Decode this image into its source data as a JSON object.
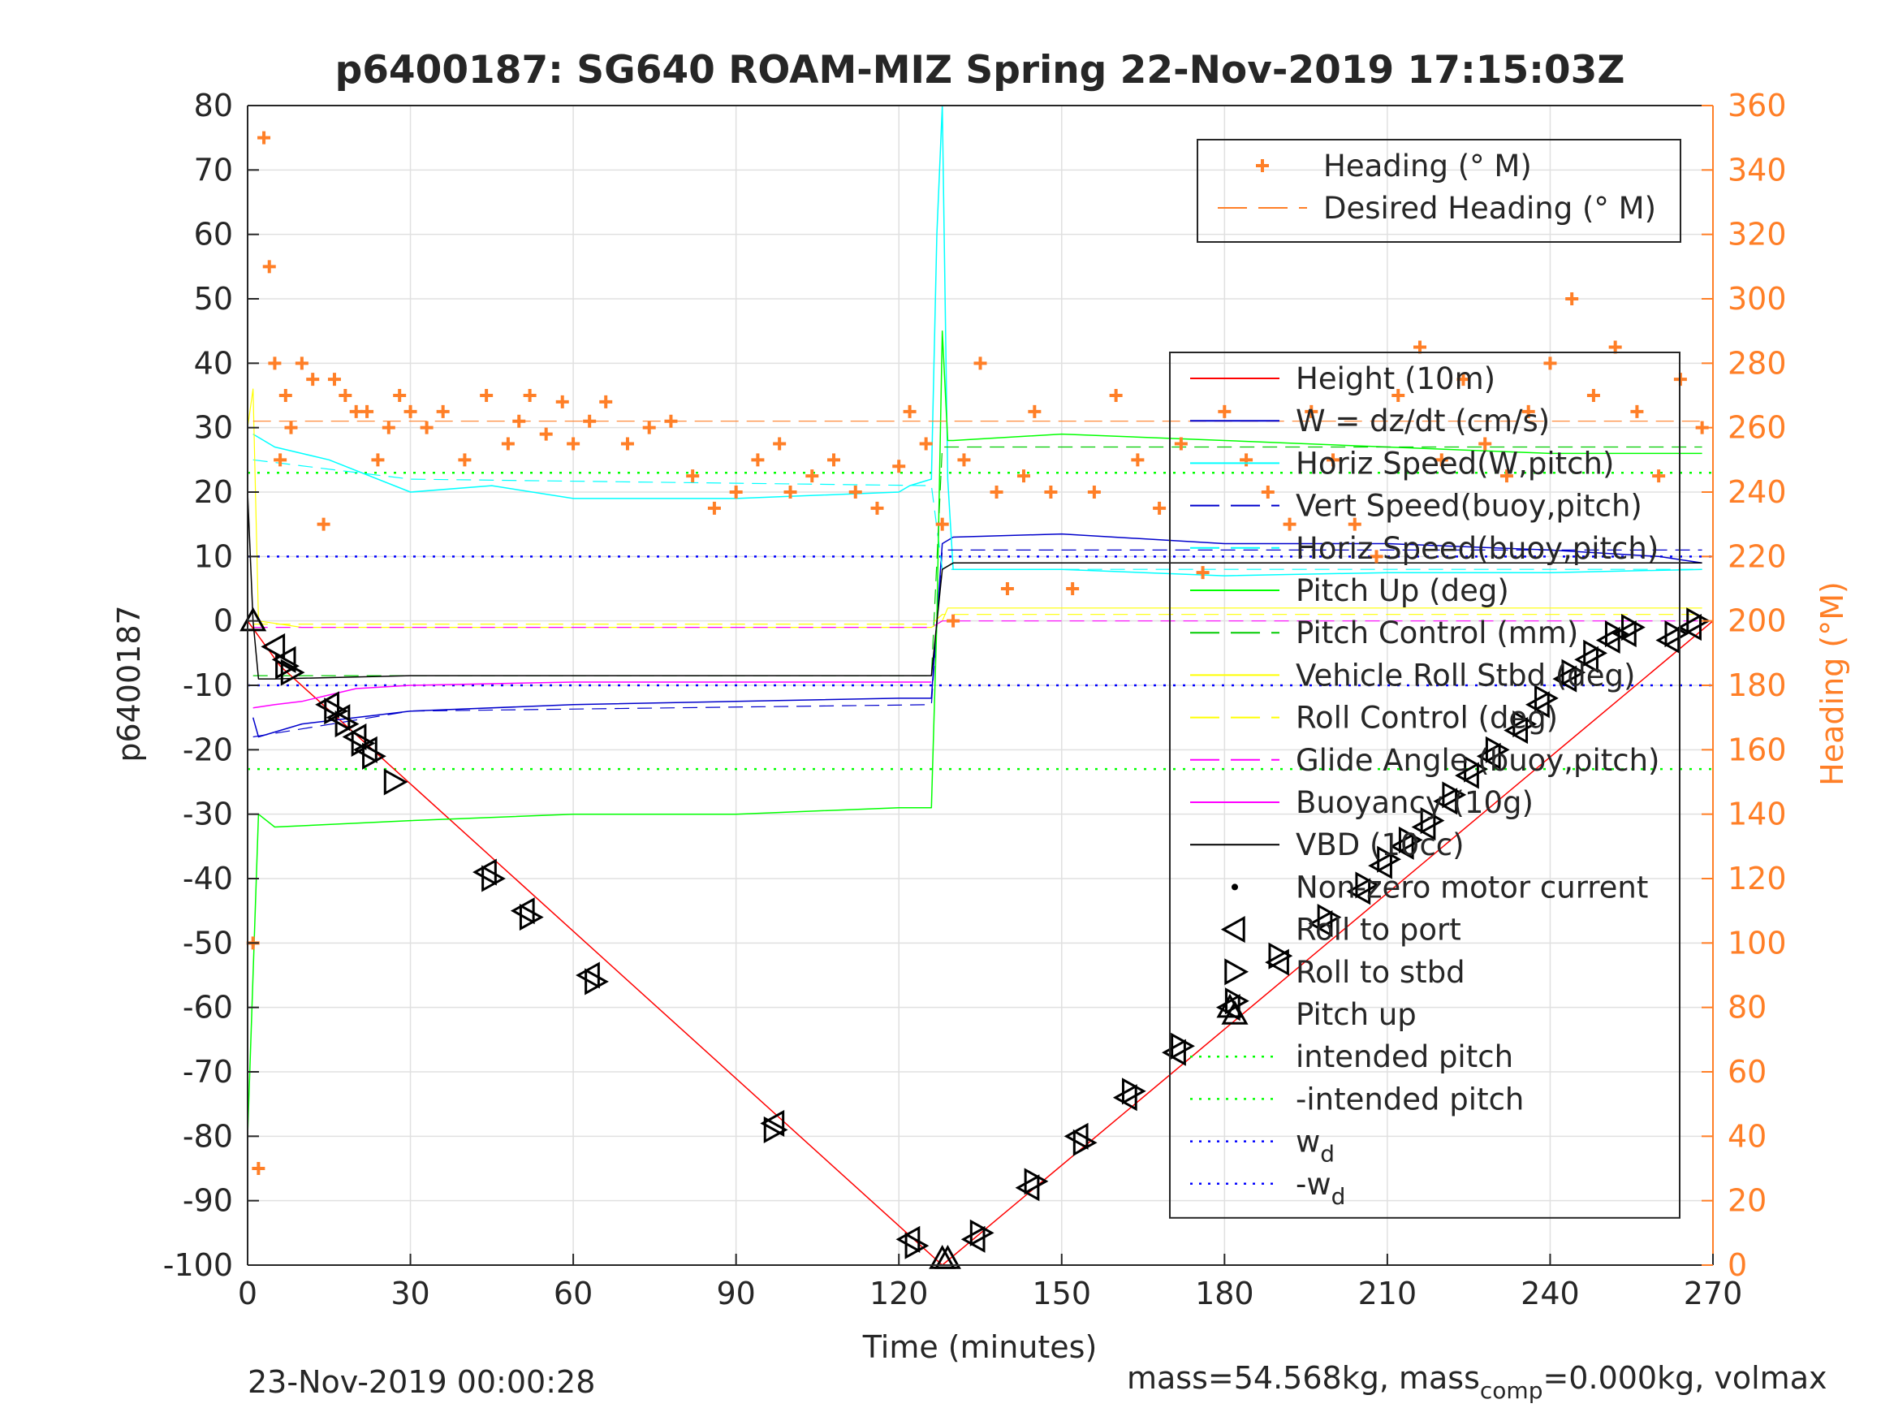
{
  "chart_data": {
    "type": "line",
    "title": "p6400187: SG640 ROAM-MIZ Spring 22-Nov-2019 17:15:03Z",
    "xlabel": "Time (minutes)",
    "ylabel": "p6400187",
    "y2label": "Heading (°M)",
    "xlim": [
      0,
      270
    ],
    "ylim": [
      -100,
      80
    ],
    "y2lim": [
      0,
      360
    ],
    "xticks": [
      0,
      30,
      60,
      90,
      120,
      150,
      180,
      210,
      240,
      270
    ],
    "yticks": [
      -100,
      -90,
      -80,
      -70,
      -60,
      -50,
      -40,
      -30,
      -20,
      -10,
      0,
      10,
      20,
      30,
      40,
      50,
      60,
      70,
      80
    ],
    "y2ticks": [
      0,
      20,
      40,
      60,
      80,
      100,
      120,
      140,
      160,
      180,
      200,
      220,
      240,
      260,
      280,
      300,
      320,
      340,
      360
    ],
    "grid": true,
    "footer_left": "23-Nov-2019 00:00:28",
    "footer_right": "mass=54.568kg, mass",
    "footer_right_sub": "comp",
    "footer_right_tail": "=0.000kg, volmax",
    "colors": {
      "axis": "#262626",
      "grid": "#e0e0e0",
      "heading": "#ff7f27",
      "red": "#ff0000",
      "blue": "#0000ff",
      "darkblue": "#0000cc",
      "cyan": "#00ffff",
      "green": "#00ff00",
      "yellow": "#ffff00",
      "magenta": "#ff00ff",
      "black": "#000000"
    },
    "legend_heading": [
      {
        "label": "Heading (° M)",
        "style": "plus",
        "color": "#ff7f27"
      },
      {
        "label": "Desired Heading (° M)",
        "style": "dash",
        "color": "#ff7f27"
      }
    ],
    "legend_main": [
      {
        "label": "Height (10m)",
        "style": "solid",
        "color": "#ff0000"
      },
      {
        "label": "W = dz/dt (cm/s)",
        "style": "solid",
        "color": "#0000cc"
      },
      {
        "label": "Horiz Speed(W,pitch)",
        "style": "solid",
        "color": "#00ffff"
      },
      {
        "label": "Vert Speed(buoy,pitch)",
        "style": "dash",
        "color": "#0000cc"
      },
      {
        "label": "Horiz Speed(buoy,pitch)",
        "style": "dash",
        "color": "#00ffff"
      },
      {
        "label": "Pitch Up (deg)",
        "style": "solid",
        "color": "#00ff00"
      },
      {
        "label": "Pitch Control (mm)",
        "style": "dash",
        "color": "#00cc00"
      },
      {
        "label": "Vehicle Roll Stbd (deg)",
        "style": "solid",
        "color": "#ffff00"
      },
      {
        "label": "Roll Control (deg)",
        "style": "dash",
        "color": "#ffff00"
      },
      {
        "label": "Glide Angle (buoy,pitch)",
        "style": "dash",
        "color": "#ff00ff"
      },
      {
        "label": "Buoyancy (10g)",
        "style": "solid",
        "color": "#ff00ff"
      },
      {
        "label": "VBD (10cc)",
        "style": "solid",
        "color": "#000000"
      },
      {
        "label": "Non-zero motor current",
        "style": "dot",
        "color": "#000000"
      },
      {
        "label": "Roll to port",
        "style": "tri-left",
        "color": "#000000"
      },
      {
        "label": "Roll to stbd",
        "style": "tri-right",
        "color": "#000000"
      },
      {
        "label": "Pitch up",
        "style": "tri-up",
        "color": "#000000"
      },
      {
        "label": "intended pitch",
        "style": "dotted",
        "color": "#00ff00"
      },
      {
        "label": "-intended pitch",
        "style": "dotted",
        "color": "#00ff00"
      },
      {
        "label": "w",
        "sub": "d",
        "style": "dotted",
        "color": "#0000ff"
      },
      {
        "label": "-w",
        "sub": "d",
        "style": "dotted",
        "color": "#0000ff"
      }
    ],
    "reference_lines": [
      {
        "name": "intended pitch",
        "y": 23,
        "color": "#00ff00"
      },
      {
        "name": "-intended pitch",
        "y": -23,
        "color": "#00ff00"
      },
      {
        "name": "wd",
        "y": 10,
        "color": "#0000ff"
      },
      {
        "name": "-wd",
        "y": -10,
        "color": "#0000ff"
      }
    ],
    "series": [
      {
        "name": "Height (10m)",
        "color": "#ff0000",
        "width": 1.5,
        "x": [
          0,
          6,
          128,
          270
        ],
        "y": [
          0,
          -7,
          -100,
          0
        ]
      },
      {
        "name": "W = dz/dt (cm/s)",
        "color": "#0000cc",
        "width": 1.5,
        "x": [
          1,
          2,
          10,
          30,
          60,
          90,
          120,
          126,
          128,
          130,
          150,
          180,
          210,
          240,
          260,
          268
        ],
        "y": [
          -15,
          -18,
          -16,
          -14,
          -13,
          -12.5,
          -12,
          -12,
          12,
          13,
          13.5,
          12,
          12,
          11,
          10,
          9
        ]
      },
      {
        "name": "Horiz Speed(W,pitch)",
        "color": "#00ffff",
        "width": 1.5,
        "x": [
          1,
          5,
          15,
          30,
          45,
          60,
          90,
          120,
          122,
          126,
          127,
          128,
          129,
          130,
          150,
          180,
          210,
          240,
          268
        ],
        "y": [
          29,
          27,
          25,
          20,
          21,
          19,
          19,
          20,
          21,
          22,
          60,
          80,
          22,
          8,
          8,
          7,
          7.5,
          7.5,
          8
        ]
      },
      {
        "name": "Vert Speed(buoy,pitch)",
        "color": "#0000cc",
        "width": 1.2,
        "dash": "18 10",
        "x": [
          1,
          30,
          126,
          128,
          268
        ],
        "y": [
          -18,
          -14,
          -13,
          11,
          11
        ]
      },
      {
        "name": "Horiz Speed(buoy,pitch)",
        "color": "#00ffff",
        "width": 1.2,
        "dash": "18 10",
        "x": [
          1,
          30,
          126,
          128,
          268
        ],
        "y": [
          25,
          22,
          21,
          8,
          8
        ]
      },
      {
        "name": "Pitch Up (deg)",
        "color": "#00ff00",
        "width": 1.5,
        "x": [
          0,
          2,
          5,
          30,
          60,
          90,
          120,
          126,
          127,
          128,
          129,
          130,
          150,
          180,
          210,
          240,
          268
        ],
        "y": [
          -80,
          -30,
          -32,
          -31,
          -30,
          -30,
          -29,
          -29,
          0,
          45,
          28,
          28,
          29,
          28,
          27,
          26,
          26
        ]
      },
      {
        "name": "Pitch Control (mm)",
        "color": "#00cc00",
        "width": 1.2,
        "dash": "18 10",
        "x": [
          1,
          126,
          128,
          268
        ],
        "y": [
          -8.5,
          -8.5,
          27,
          27
        ]
      },
      {
        "name": "Vehicle Roll Stbd (deg)",
        "color": "#ffff00",
        "width": 1.2,
        "x": [
          0,
          1,
          2,
          10,
          60,
          120,
          126,
          128,
          129,
          130,
          150,
          180,
          210,
          240,
          268
        ],
        "y": [
          30,
          36,
          0,
          -1,
          -1,
          -1,
          -1,
          0,
          2,
          2,
          2,
          2,
          2,
          2,
          2
        ]
      },
      {
        "name": "Roll Control (deg)",
        "color": "#ffff00",
        "width": 1.2,
        "dash": "18 10",
        "x": [
          1,
          126,
          128,
          268
        ],
        "y": [
          -0.5,
          -0.5,
          1,
          1
        ]
      },
      {
        "name": "Glide Angle (buoy,pitch)",
        "color": "#ff00ff",
        "width": 1.2,
        "dash": "18 10",
        "x": [
          1,
          126,
          128,
          268
        ],
        "y": [
          -1,
          -1,
          0,
          0
        ]
      },
      {
        "name": "Buoyancy (10g)",
        "color": "#ff00ff",
        "width": 1.5,
        "x": [
          1,
          5,
          10,
          15,
          20,
          30,
          60,
          90,
          126
        ],
        "y": [
          -13.5,
          -13,
          -12.5,
          -11.5,
          -10.5,
          -10,
          -9.5,
          -9.5,
          -9.5
        ]
      },
      {
        "name": "VBD (10cc)",
        "color": "#000000",
        "width": 1.5,
        "x": [
          0,
          1,
          2,
          5,
          30,
          60,
          126,
          128,
          130,
          268
        ],
        "y": [
          20,
          0,
          -9,
          -9,
          -8.5,
          -8.5,
          -8.5,
          8,
          9,
          9
        ]
      },
      {
        "name": "Heading (° M)",
        "axis": "right",
        "marker": "plus",
        "color": "#ff7f27",
        "x": [
          1,
          2,
          3,
          4,
          5,
          6,
          7,
          8,
          10,
          12,
          14,
          16,
          18,
          20,
          22,
          24,
          26,
          28,
          30,
          33,
          36,
          40,
          44,
          48,
          50,
          52,
          55,
          58,
          60,
          63,
          66,
          70,
          74,
          78,
          82,
          86,
          90,
          94,
          98,
          100,
          104,
          108,
          112,
          116,
          120,
          122,
          125,
          128,
          130,
          132,
          135,
          138,
          140,
          143,
          145,
          148,
          152,
          156,
          160,
          164,
          168,
          172,
          176,
          180,
          184,
          188,
          192,
          196,
          200,
          204,
          208,
          212,
          216,
          220,
          224,
          228,
          232,
          236,
          240,
          244,
          248,
          252,
          256,
          260,
          264,
          268
        ],
        "y": [
          100,
          30,
          350,
          310,
          280,
          250,
          270,
          260,
          280,
          275,
          230,
          275,
          270,
          265,
          265,
          250,
          260,
          270,
          265,
          260,
          265,
          250,
          270,
          255,
          262,
          270,
          258,
          268,
          255,
          262,
          268,
          255,
          260,
          262,
          245,
          235,
          240,
          250,
          255,
          240,
          245,
          250,
          240,
          235,
          248,
          265,
          255,
          230,
          200,
          250,
          280,
          240,
          210,
          245,
          265,
          240,
          210,
          240,
          270,
          250,
          235,
          255,
          215,
          265,
          250,
          240,
          230,
          265,
          250,
          230,
          220,
          270,
          285,
          250,
          275,
          255,
          245,
          265,
          280,
          300,
          270,
          285,
          265,
          245,
          275,
          260
        ]
      },
      {
        "name": "Desired Heading (° M)",
        "axis": "right",
        "color": "#ff7f27",
        "dash": "22 10",
        "width": 1.2,
        "x": [
          1,
          40,
          90,
          120,
          126,
          128,
          268
        ],
        "y": [
          262,
          262,
          262,
          262,
          262,
          262,
          262
        ]
      }
    ],
    "markers": {
      "roll_to_port": {
        "x": [
          5,
          7,
          15,
          17,
          20,
          22,
          44,
          51,
          63,
          97,
          122,
          134,
          144,
          153,
          162,
          171,
          181,
          190,
          198,
          205,
          209,
          213,
          217,
          221,
          225,
          229,
          234,
          238,
          243,
          247,
          251,
          254,
          262,
          266
        ],
        "y": [
          -4,
          -6,
          -13,
          -15,
          -18,
          -20,
          -39,
          -45,
          -55,
          -78,
          -96,
          -96,
          -88,
          -80,
          -74,
          -67,
          -60,
          -53,
          -47,
          -42,
          -38,
          -35,
          -32,
          -28,
          -24,
          -21,
          -17,
          -13,
          -9,
          -6,
          -3,
          -2,
          -3,
          -1
        ]
      },
      "roll_to_stbd": {
        "x": [
          7,
          8,
          16,
          18,
          21,
          23,
          27,
          45,
          52,
          64,
          97,
          123,
          135,
          145,
          154,
          163,
          172,
          182,
          190,
          199,
          206,
          210,
          214,
          218,
          222,
          226,
          230,
          235,
          239,
          244,
          248,
          252,
          255,
          263,
          267
        ],
        "y": [
          -7,
          -8,
          -14,
          -16,
          -19,
          -21,
          -25,
          -40,
          -46,
          -56,
          -79,
          -97,
          -95,
          -87,
          -81,
          -73,
          -66,
          -59,
          -52,
          -46,
          -41,
          -37,
          -34,
          -31,
          -27,
          -23,
          -20,
          -16,
          -12,
          -8,
          -5,
          -2,
          -1,
          -2,
          0
        ]
      },
      "pitch_up": {
        "x": [
          1,
          128,
          129,
          181
        ],
        "y": [
          0,
          -99,
          -99,
          -60
        ]
      }
    }
  }
}
